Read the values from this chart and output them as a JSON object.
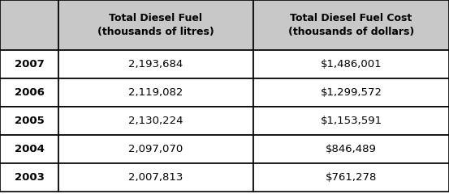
{
  "years": [
    "2007",
    "2006",
    "2005",
    "2004",
    "2003"
  ],
  "fuel": [
    "2,193,684",
    "2,119,082",
    "2,130,224",
    "2,097,070",
    "2,007,813"
  ],
  "cost": [
    "$1,486,001",
    "$1,299,572",
    "$1,153,591",
    "$846,489",
    "$761,278"
  ],
  "col1_header_line1": "Total Diesel Fuel",
  "col1_header_line2": "(thousands of litres)",
  "col2_header_line1": "Total Diesel Fuel Cost",
  "col2_header_line2": "(thousands of dollars)",
  "bg_color": "#ffffff",
  "header_bg": "#c8c8c8",
  "border_color": "#000000",
  "text_color": "#000000",
  "fig_width": 5.53,
  "fig_height": 2.4,
  "dpi": 100
}
